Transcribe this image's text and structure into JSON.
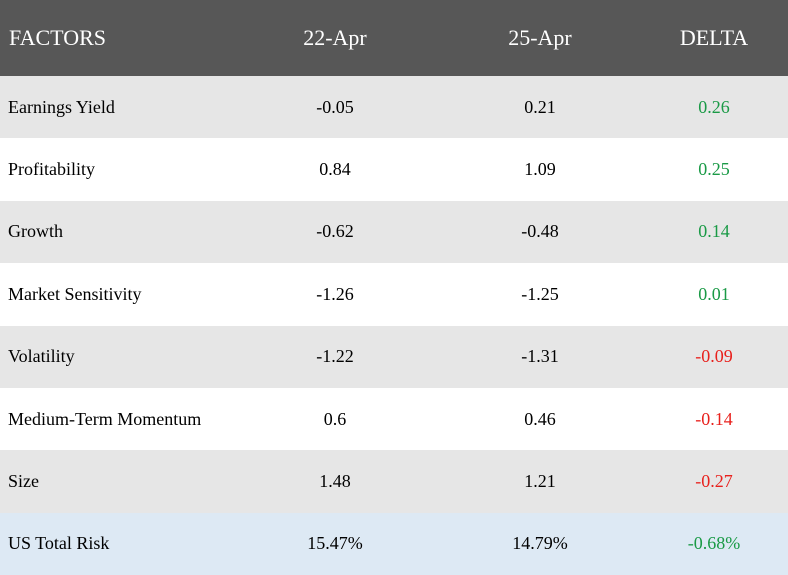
{
  "colors": {
    "header_bg": "#575757",
    "odd_row": "#e6e6e6",
    "even_row": "#ffffff",
    "total_row": "#dde9f4",
    "positive": "#1a9a46",
    "negative": "#e8211d"
  },
  "chart_data": {
    "type": "table",
    "columns": [
      "FACTORS",
      "22-Apr",
      "25-Apr",
      "DELTA"
    ],
    "rows": [
      {
        "factor": "Earnings Yield",
        "apr22": "-0.05",
        "apr25": "0.21",
        "delta": "0.26",
        "sign": "pos"
      },
      {
        "factor": "Profitability",
        "apr22": "0.84",
        "apr25": "1.09",
        "delta": "0.25",
        "sign": "pos"
      },
      {
        "factor": "Growth",
        "apr22": "-0.62",
        "apr25": "-0.48",
        "delta": "0.14",
        "sign": "pos"
      },
      {
        "factor": "Market Sensitivity",
        "apr22": "-1.26",
        "apr25": "-1.25",
        "delta": "0.01",
        "sign": "pos"
      },
      {
        "factor": "Volatility",
        "apr22": "-1.22",
        "apr25": "-1.31",
        "delta": "-0.09",
        "sign": "neg"
      },
      {
        "factor": "Medium-Term Momentum",
        "apr22": "0.6",
        "apr25": "0.46",
        "delta": "-0.14",
        "sign": "neg"
      },
      {
        "factor": "Size",
        "apr22": "1.48",
        "apr25": "1.21",
        "delta": "-0.27",
        "sign": "neg"
      }
    ],
    "total": {
      "factor": "US Total Risk",
      "apr22": "15.47%",
      "apr25": "14.79%",
      "delta": "-0.68%",
      "sign": "pos"
    }
  }
}
